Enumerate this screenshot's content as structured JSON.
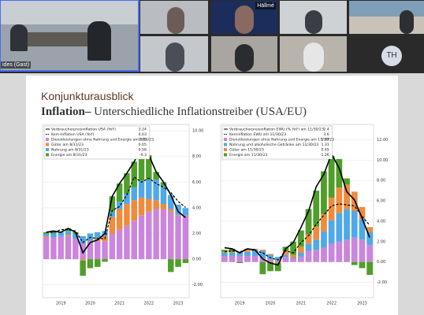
{
  "participants": {
    "main_label": "ides (Gast)",
    "tile_label": "Hällmé",
    "avatar": "TH"
  },
  "slide": {
    "kicker": "Konjunkturausblick",
    "title_bold": "Inflation–",
    "title_rest": "Unterschiedliche Inflationstreiber (USA/EU)"
  },
  "chart_data": [
    {
      "type": "stacked-bar-line",
      "categories": [
        null,
        null,
        "2019",
        null,
        null,
        null,
        "2020",
        null,
        null,
        null,
        "2021",
        null,
        null,
        null,
        "2022",
        null,
        null,
        null,
        "2023",
        null
      ],
      "ylim": [
        -3,
        10.5
      ],
      "yticks": [
        {
          "value": 10,
          "label": "10.00"
        },
        {
          "value": 8,
          "label": "8.00"
        },
        {
          "value": 6,
          "label": "6.00"
        },
        {
          "value": 4,
          "label": "4.00"
        },
        {
          "value": 2,
          "label": "2.00"
        },
        {
          "value": 0,
          "label": "0.00"
        },
        {
          "value": -2,
          "label": "-2.00"
        }
      ],
      "series": [
        {
          "name": "Verbraucherpreisinflation USA (YoY)",
          "legend_value": 3.24,
          "kind": "line",
          "dash": false,
          "color": "#000000",
          "values": [
            2.1,
            2.2,
            2.1,
            2.4,
            2.1,
            0.5,
            1.3,
            1.5,
            2.0,
            4.9,
            5.9,
            6.7,
            7.6,
            8.8,
            8.1,
            6.8,
            6.0,
            5.0,
            3.7,
            3.24
          ]
        },
        {
          "name": "Kern-Inflation USA (YoY)",
          "legend_value": 4.03,
          "kind": "line",
          "dash": true,
          "color": "#000000",
          "values": [
            2.1,
            2.1,
            2.3,
            2.3,
            2.2,
            1.3,
            1.7,
            1.6,
            1.6,
            3.8,
            4.1,
            5.0,
            6.4,
            6.0,
            6.3,
            5.9,
            5.6,
            5.2,
            4.5,
            4.03
          ]
        },
        {
          "name": "Dienstleistungen ohne Nahrung und Energie am 8/31/23",
          "legend_value": 3.35,
          "kind": "bar",
          "color": "#c986dc",
          "values": [
            1.7,
            1.7,
            1.8,
            1.8,
            1.6,
            1.2,
            1.3,
            1.4,
            1.4,
            2.0,
            2.3,
            2.6,
            3.0,
            3.4,
            3.7,
            3.9,
            3.9,
            3.7,
            3.4,
            3.35
          ]
        },
        {
          "name": "Güter am 8/31/23",
          "legend_value": 0.05,
          "kind": "bar",
          "color": "#f08a3c",
          "values": [
            0.1,
            0.0,
            0.0,
            0.1,
            0.0,
            -0.1,
            0.1,
            0.2,
            0.4,
            1.3,
            1.6,
            1.7,
            1.6,
            1.4,
            1.0,
            0.7,
            0.4,
            0.2,
            0.05,
            0.05
          ]
        },
        {
          "name": "Nahrung am 8/31/23",
          "legend_value": 0.58,
          "kind": "bar",
          "color": "#4fa8e8",
          "values": [
            0.2,
            0.3,
            0.3,
            0.3,
            0.4,
            0.6,
            0.6,
            0.5,
            0.4,
            0.4,
            0.6,
            0.8,
            1.0,
            1.3,
            1.5,
            1.6,
            1.4,
            1.1,
            0.8,
            0.58
          ]
        },
        {
          "name": "Energie am 8/31/23",
          "legend_value": -0.3,
          "kind": "bar",
          "color": "#4f9e2a",
          "values": [
            0.1,
            0.2,
            0.0,
            0.2,
            0.1,
            -1.2,
            -0.7,
            -0.6,
            -0.2,
            1.2,
            1.4,
            1.6,
            2.0,
            2.7,
            1.9,
            0.6,
            0.3,
            -1.0,
            -0.6,
            -0.3
          ]
        }
      ]
    },
    {
      "type": "stacked-bar-line",
      "categories": [
        null,
        null,
        "2019",
        null,
        null,
        null,
        "2020",
        null,
        null,
        null,
        "2021",
        null,
        null,
        null,
        "2022",
        null,
        null,
        null,
        "2023",
        null
      ],
      "ylim": [
        -3.5,
        13.5
      ],
      "yticks": [
        {
          "value": 12,
          "label": "12.00"
        },
        {
          "value": 10,
          "label": "10.00"
        },
        {
          "value": 8,
          "label": "8.00"
        },
        {
          "value": 6,
          "label": "6.00"
        },
        {
          "value": 4,
          "label": "4.00"
        },
        {
          "value": 2,
          "label": "2.00"
        },
        {
          "value": 0,
          "label": "0.00"
        },
        {
          "value": -2,
          "label": "-2.00"
        }
      ],
      "series": [
        {
          "name": "Verbraucherpreisinflation EWU (% YoY) am 11/30/23",
          "legend_value": 2.4,
          "kind": "line",
          "dash": false,
          "color": "#000000",
          "values": [
            1.4,
            1.3,
            0.9,
            1.3,
            1.2,
            0.3,
            -0.1,
            -0.3,
            1.3,
            1.9,
            3.4,
            5.0,
            7.4,
            8.6,
            10.6,
            9.2,
            6.9,
            6.1,
            4.3,
            2.4
          ]
        },
        {
          "name": "Kerninflation EWU am 11/30/23",
          "legend_value": 3.6,
          "kind": "line",
          "dash": true,
          "color": "#000000",
          "values": [
            1.0,
            1.1,
            1.0,
            1.3,
            1.1,
            0.9,
            0.4,
            0.2,
            1.1,
            0.9,
            1.9,
            2.6,
            3.7,
            4.6,
            5.5,
            5.7,
            5.6,
            5.5,
            4.5,
            3.6
          ]
        },
        {
          "name": "Dienstleistungen ohne Nahrung und Energie am 11/30/23",
          "legend_value": 1.67,
          "kind": "bar",
          "color": "#c986dc",
          "values": [
            0.6,
            0.6,
            0.6,
            0.6,
            0.6,
            0.4,
            0.3,
            0.2,
            0.5,
            0.3,
            0.5,
            1.1,
            1.2,
            1.4,
            1.8,
            2.0,
            2.2,
            2.4,
            2.2,
            1.67
          ]
        },
        {
          "name": "Nahrung und alkoholische Getränke am 11/30/23",
          "legend_value": 1.31,
          "kind": "bar",
          "color": "#4fa8e8",
          "values": [
            0.3,
            0.3,
            0.3,
            0.4,
            0.6,
            0.7,
            0.4,
            0.3,
            0.2,
            0.1,
            0.4,
            0.7,
            1.0,
            1.6,
            2.3,
            2.8,
            3.0,
            2.6,
            2.0,
            1.31
          ]
        },
        {
          "name": "Güter am 11/30/23",
          "legend_value": 0.45,
          "kind": "bar",
          "color": "#f08a3c",
          "values": [
            0.1,
            0.1,
            0.1,
            0.2,
            0.1,
            0.1,
            0.1,
            -0.1,
            0.4,
            0.3,
            0.6,
            0.9,
            1.3,
            1.7,
            2.2,
            2.5,
            2.4,
            1.9,
            1.2,
            0.45
          ]
        },
        {
          "name": "Energie am 11/30/23",
          "legend_value": -1.26,
          "kind": "bar",
          "color": "#4f9e2a",
          "values": [
            0.2,
            0.3,
            -0.1,
            0.1,
            0.0,
            -1.2,
            -0.9,
            -0.8,
            0.4,
            1.3,
            1.6,
            2.5,
            3.5,
            4.2,
            4.1,
            2.8,
            0.6,
            -0.3,
            -0.6,
            -1.26
          ]
        }
      ]
    }
  ]
}
